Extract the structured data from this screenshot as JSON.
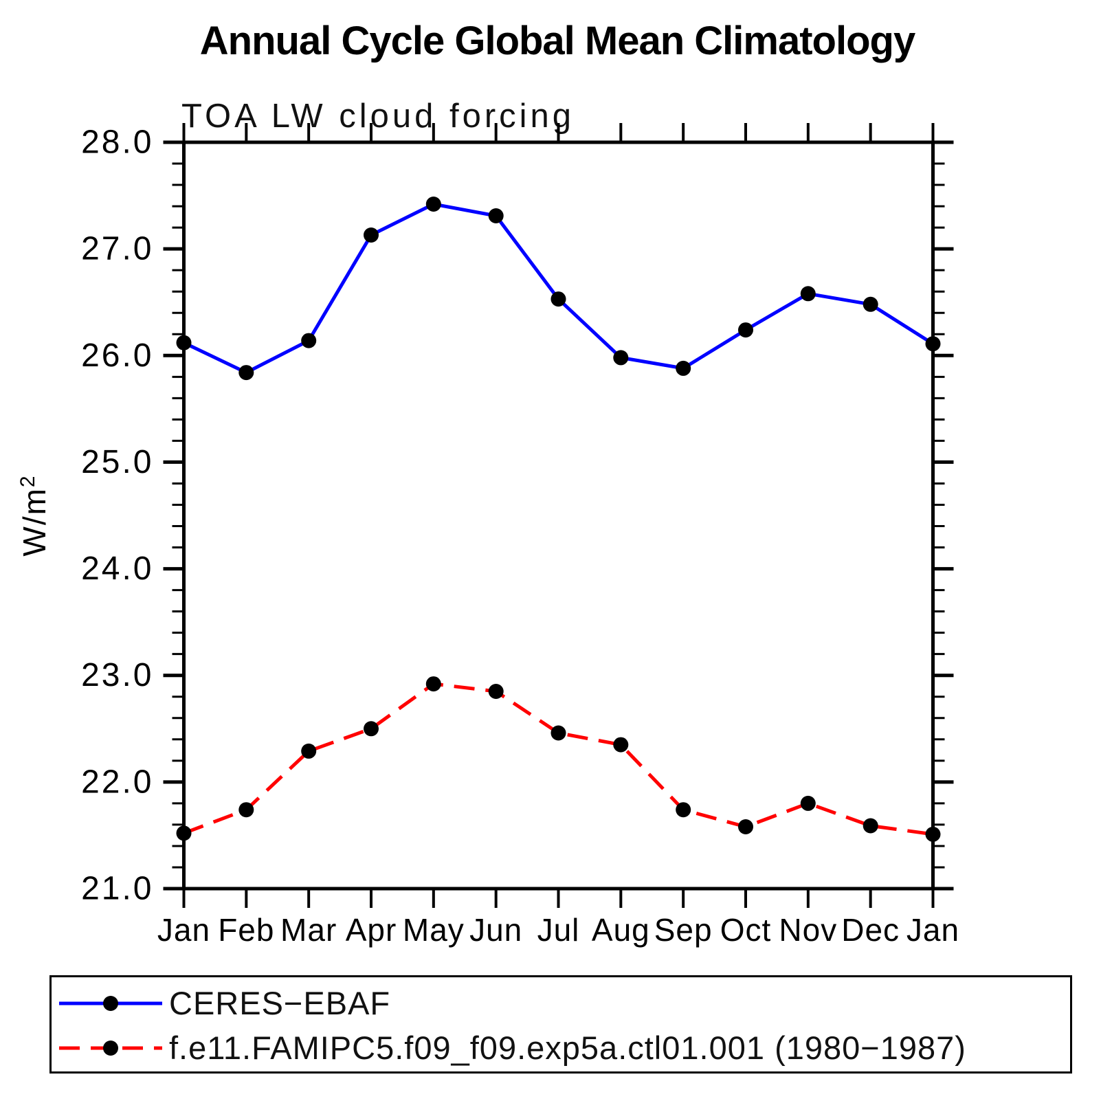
{
  "chart_data": {
    "type": "line",
    "title": "Annual Cycle Global Mean Climatology",
    "subtitle": "TOA LW cloud forcing",
    "ylabel": "W/m²",
    "xlabel": "",
    "categories": [
      "Jan",
      "Feb",
      "Mar",
      "Apr",
      "May",
      "Jun",
      "Jul",
      "Aug",
      "Sep",
      "Oct",
      "Nov",
      "Dec",
      "Jan"
    ],
    "series": [
      {
        "name": "CERES−EBAF",
        "color": "#0000ff",
        "line_style": "solid",
        "marker": "black-dot",
        "values": [
          26.12,
          25.84,
          26.14,
          27.13,
          27.42,
          27.31,
          26.53,
          25.98,
          25.88,
          26.24,
          26.58,
          26.48,
          26.11
        ]
      },
      {
        "name": "f.e11.FAMIPC5.f09_f09.exp5a.ctl01.001 (1980−1987)",
        "color": "#ff0000",
        "line_style": "dashed",
        "marker": "black-dot",
        "values": [
          21.52,
          21.74,
          22.29,
          22.5,
          22.92,
          22.85,
          22.46,
          22.35,
          21.74,
          21.58,
          21.8,
          21.59,
          21.51
        ]
      }
    ],
    "ylim": [
      21.0,
      28.0
    ],
    "ytick_major": 1.0,
    "ytick_minor": 0.2,
    "ytick_labels": [
      "21.0",
      "22.0",
      "23.0",
      "24.0",
      "25.0",
      "26.0",
      "27.0",
      "28.0"
    ],
    "grid": false,
    "legend_position": "bottom",
    "marker_color": "#000000",
    "axis_color": "#000000"
  }
}
